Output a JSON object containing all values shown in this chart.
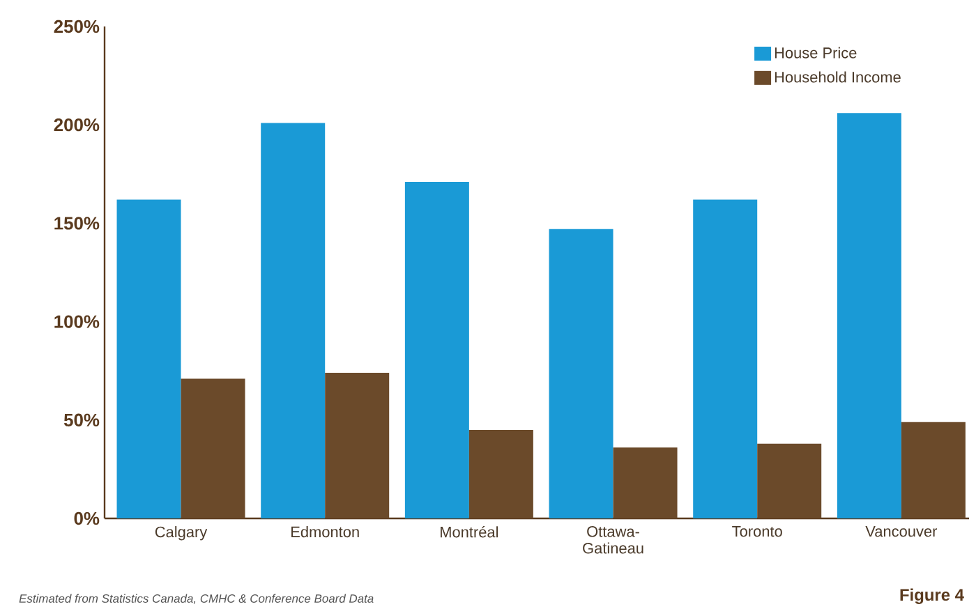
{
  "chart_data": {
    "type": "bar",
    "categories": [
      "Calgary",
      "Edmonton",
      "Montréal",
      "Ottawa-Gatineau",
      "Toronto",
      "Vancouver"
    ],
    "series": [
      {
        "name": "House Price",
        "color": "#1a9ad6",
        "values": [
          162,
          201,
          171,
          147,
          162,
          206
        ]
      },
      {
        "name": "Household Income",
        "color": "#6b4a2a",
        "values": [
          71,
          74,
          45,
          36,
          38,
          49
        ]
      }
    ],
    "ylim": [
      0,
      250
    ],
    "yticks": [
      {
        "value": 0,
        "label": "0%"
      },
      {
        "value": 50,
        "label": "50%"
      },
      {
        "value": 100,
        "label": "100%"
      },
      {
        "value": 150,
        "label": "150%"
      },
      {
        "value": 200,
        "label": "200%"
      },
      {
        "value": 250,
        "label": "250%"
      }
    ],
    "legend": "top right",
    "grid": false,
    "annotations": [
      "Estimated from Statistics Canada, CMHC & Conference Board Data",
      "Figure 4"
    ]
  }
}
